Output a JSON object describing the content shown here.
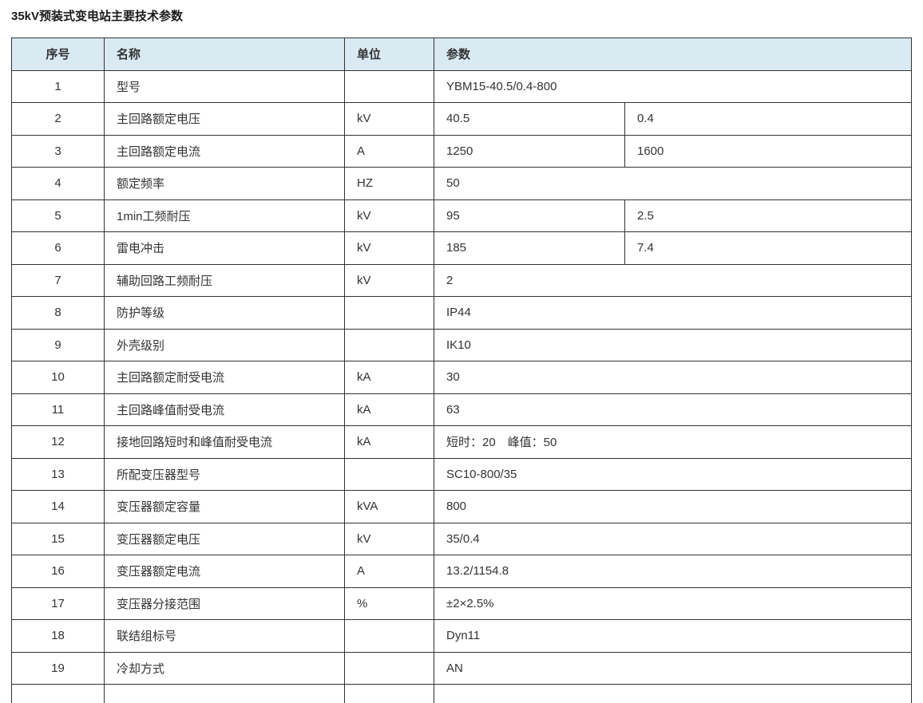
{
  "title": "35kV预装式变电站主要技术参数",
  "colors": {
    "header_bg": "#d9eaf3",
    "border": "#333333",
    "text": "#333333"
  },
  "table": {
    "headers": {
      "no": "序号",
      "name": "名称",
      "unit": "单位",
      "param": "参数"
    },
    "rows": [
      {
        "no": "1",
        "name": "型号",
        "unit": "",
        "params": [
          "YBM15-40.5/0.4-800"
        ]
      },
      {
        "no": "2",
        "name": "主回路额定电压",
        "unit": "kV",
        "params": [
          "40.5",
          "0.4"
        ]
      },
      {
        "no": "3",
        "name": "主回路额定电流",
        "unit": "A",
        "params": [
          "1250",
          "1600"
        ]
      },
      {
        "no": "4",
        "name": "额定频率",
        "unit": "HZ",
        "params": [
          "50"
        ]
      },
      {
        "no": "5",
        "name": "1min工频耐压",
        "unit": "kV",
        "params": [
          "95",
          "2.5"
        ]
      },
      {
        "no": "6",
        "name": "雷电冲击",
        "unit": "kV",
        "params": [
          "185",
          "7.4"
        ]
      },
      {
        "no": "7",
        "name": "辅助回路工频耐压",
        "unit": "kV",
        "params": [
          "2"
        ]
      },
      {
        "no": "8",
        "name": "防护等级",
        "unit": "",
        "params": [
          "IP44"
        ]
      },
      {
        "no": "9",
        "name": "外壳级别",
        "unit": "",
        "params": [
          "IK10"
        ]
      },
      {
        "no": "10",
        "name": "主回路额定耐受电流",
        "unit": "kA",
        "params": [
          "30"
        ]
      },
      {
        "no": "11",
        "name": "主回路峰值耐受电流",
        "unit": "kA",
        "params": [
          "63"
        ]
      },
      {
        "no": "12",
        "name": "接地回路短时和峰值耐受电流",
        "unit": "kA",
        "params": [
          "短时：20　峰值：50"
        ]
      },
      {
        "no": "13",
        "name": "所配变压器型号",
        "unit": "",
        "params": [
          "SC10-800/35"
        ]
      },
      {
        "no": "14",
        "name": "变压器额定容量",
        "unit": "kVA",
        "params": [
          "800"
        ]
      },
      {
        "no": "15",
        "name": "变压器额定电压",
        "unit": "kV",
        "params": [
          "35/0.4"
        ]
      },
      {
        "no": "16",
        "name": "变压器额定电流",
        "unit": "A",
        "params": [
          "13.2/1154.8"
        ]
      },
      {
        "no": "17",
        "name": "变压器分接范围",
        "unit": "%",
        "params": [
          "±2×2.5%"
        ]
      },
      {
        "no": "18",
        "name": "联结组标号",
        "unit": "",
        "params": [
          "Dyn11"
        ]
      },
      {
        "no": "19",
        "name": "冷却方式",
        "unit": "",
        "params": [
          "AN"
        ]
      }
    ]
  }
}
